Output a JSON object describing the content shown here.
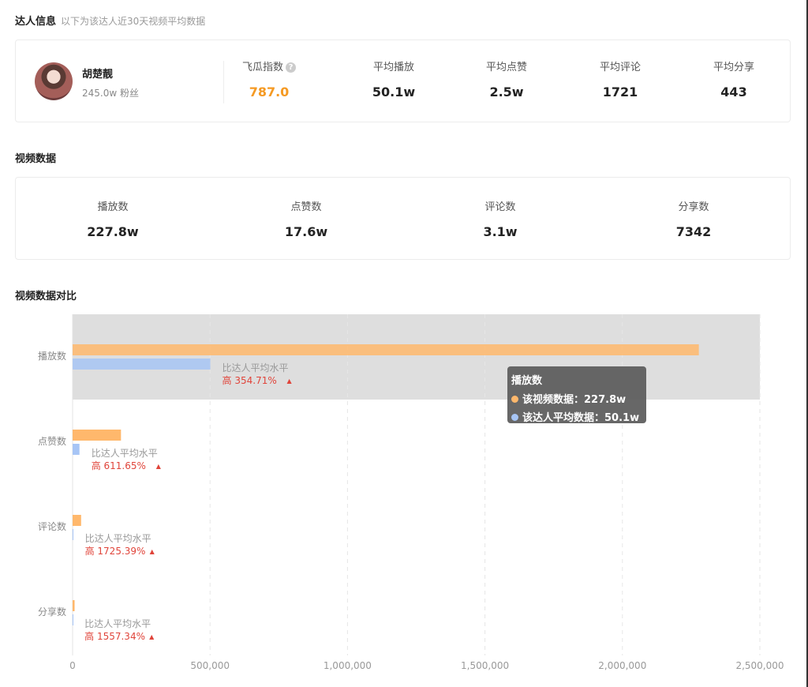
{
  "influencer_section": {
    "title": "达人信息",
    "subtitle": "以下为该达人近30天视频平均数据"
  },
  "profile": {
    "name": "胡楚靓",
    "fans": "245.0w 粉丝",
    "avatar_icon": "avatar-image"
  },
  "influencer_stats": [
    {
      "label": "飞瓜指数",
      "value": "787.0",
      "help_icon": "?",
      "highlight": "#f59a23"
    },
    {
      "label": "平均播放",
      "value": "50.1w"
    },
    {
      "label": "平均点赞",
      "value": "2.5w"
    },
    {
      "label": "平均评论",
      "value": "1721"
    },
    {
      "label": "平均分享",
      "value": "443"
    }
  ],
  "video_section": {
    "title": "视频数据"
  },
  "video_stats": [
    {
      "label": "播放数",
      "value": "227.8w"
    },
    {
      "label": "点赞数",
      "value": "17.6w"
    },
    {
      "label": "评论数",
      "value": "3.1w"
    },
    {
      "label": "分享数",
      "value": "7342"
    }
  ],
  "compare_section": {
    "title": "视频数据对比"
  },
  "chart_data": {
    "type": "bar",
    "orientation": "horizontal",
    "categories": [
      "播放数",
      "点赞数",
      "评论数",
      "分享数"
    ],
    "series": [
      {
        "name": "该视频数据",
        "values": [
          2278000,
          176000,
          31000,
          7342
        ],
        "color": "#ffb86c"
      },
      {
        "name": "该达人平均数据",
        "values": [
          501000,
          25000,
          1721,
          443
        ],
        "color": "#a7c5f5"
      }
    ],
    "x_ticks": [
      "0",
      "500,000",
      "1,000,000",
      "1,500,000",
      "2,000,000",
      "2,500,000"
    ],
    "xlim": [
      0,
      2500000
    ],
    "grid": true,
    "highlighted_category": "播放数",
    "annotations": [
      {
        "category": "播放数",
        "line1": "比达人平均水平",
        "line2": "高 354.71%",
        "arrow": "▲"
      },
      {
        "category": "点赞数",
        "line1": "比达人平均水平",
        "line2": "高 611.65%",
        "arrow": "▲"
      },
      {
        "category": "评论数",
        "line1": "比达人平均水平",
        "line2": "高 1725.39%",
        "arrow": "▲"
      },
      {
        "category": "分享数",
        "line1": "比达人平均水平",
        "line2": "高 1557.34%",
        "arrow": "▲"
      }
    ],
    "annotation_color": "#e0443a",
    "highlight_band_color": "#dedede"
  },
  "tooltip": {
    "title": "播放数",
    "rows": [
      {
        "label": "该视频数据：227.8w",
        "color": "#ffb86c"
      },
      {
        "label": "该达人平均数据：50.1w",
        "color": "#a7c5f5"
      }
    ]
  }
}
